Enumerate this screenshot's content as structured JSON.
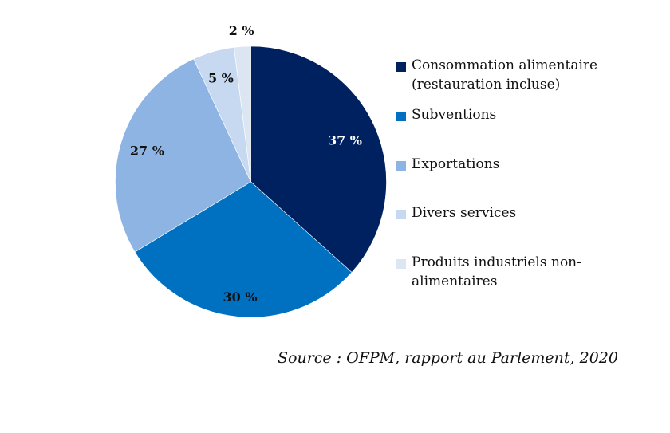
{
  "chart_data": {
    "type": "pie",
    "title": "",
    "start_angle_deg": 0,
    "direction": "clockwise",
    "slices": [
      {
        "label": "Consommation alimentaire (restauration incluse)",
        "value": 37,
        "display": "37 %",
        "color": "#00215F",
        "label_color": "#ffffff"
      },
      {
        "label": "Subventions",
        "value": 30,
        "display": "30 %",
        "color": "#0070C0",
        "label_color": "#111111"
      },
      {
        "label": "Exportations",
        "value": 27,
        "display": "27 %",
        "color": "#8EB4E3",
        "label_color": "#111111"
      },
      {
        "label": "Divers services",
        "value": 5,
        "display": "5 %",
        "color": "#C6D9F1",
        "label_color": "#111111"
      },
      {
        "label": "Produits industriels non-alimentaires",
        "value": 2,
        "display": "2 %",
        "color": "#DCE6F2",
        "label_color": "#111111"
      }
    ],
    "legend": {
      "placement": "right",
      "entries": [
        {
          "lines": [
            "Consommation alimentaire",
            "(restauration incluse)"
          ],
          "color": "#00215F"
        },
        {
          "lines": [
            "Subventions"
          ],
          "color": "#0070C0"
        },
        {
          "lines": [
            "Exportations"
          ],
          "color": "#8EB4E3"
        },
        {
          "lines": [
            "Divers services"
          ],
          "color": "#C6D9F1"
        },
        {
          "lines": [
            "Produits industriels non-",
            "alimentaires"
          ],
          "color": "#DCE6F2"
        }
      ]
    },
    "unit": "%"
  },
  "source_note": "Source : OFPM, rapport au Parlement, 2020"
}
